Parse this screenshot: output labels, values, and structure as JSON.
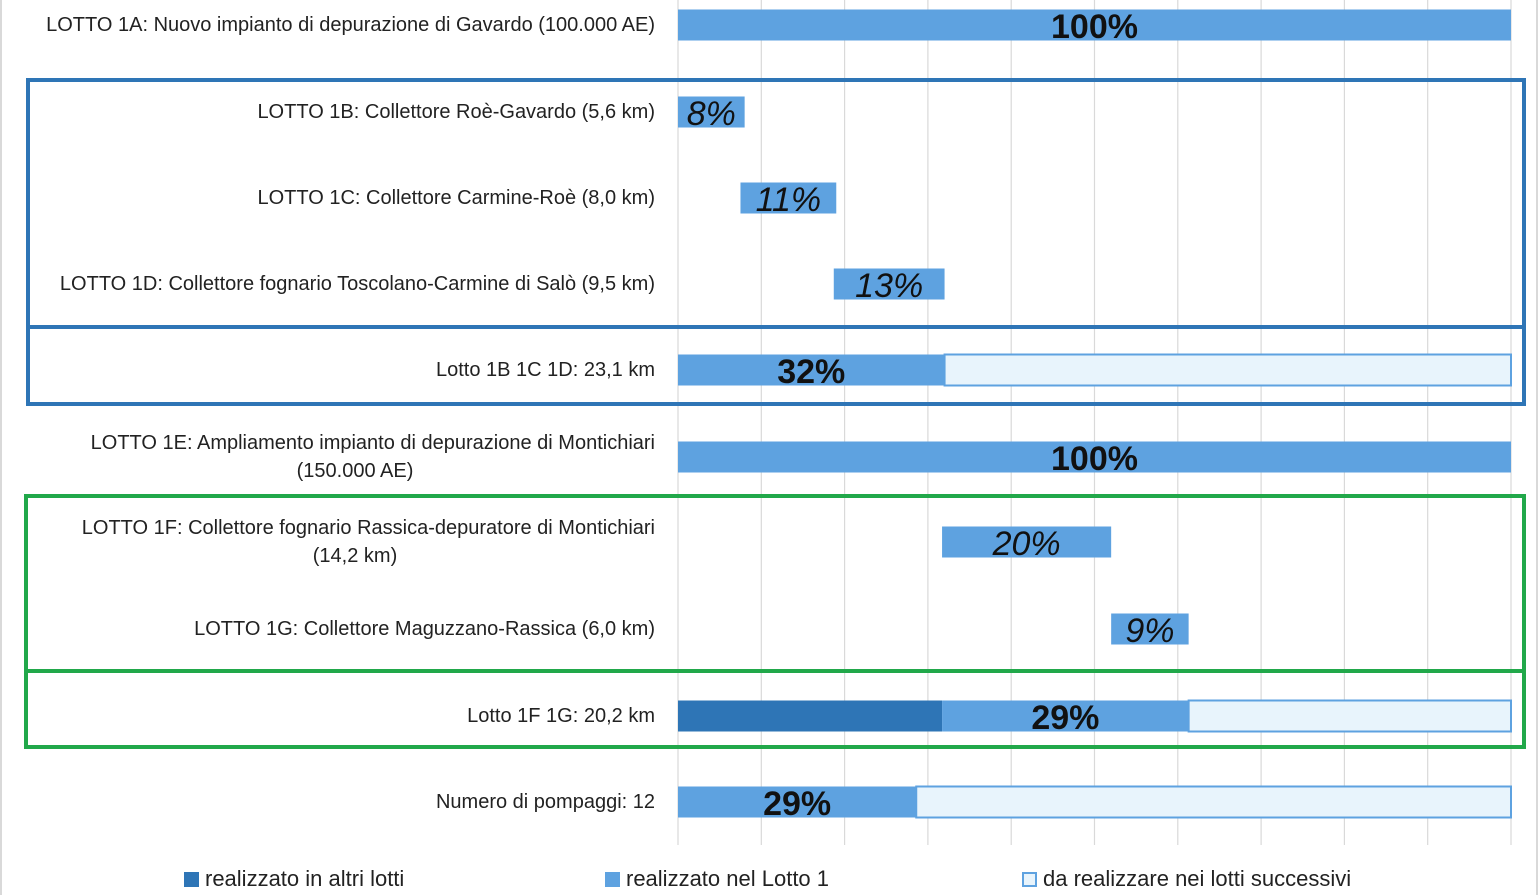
{
  "chart_data": {
    "type": "bar",
    "orientation": "horizontal",
    "stacked": true,
    "xlim": [
      0,
      100
    ],
    "grid": true,
    "legend_position": "bottom",
    "series": [
      {
        "name": "realizzato in altri lotti",
        "color": "#2e75b6"
      },
      {
        "name": "realizzato nel Lotto 1",
        "color": "#5ea2e0"
      },
      {
        "name": "da realizzare nei lotti successivi",
        "color": "#e8f4fc",
        "border": "#5ea2e0"
      }
    ],
    "rows": [
      {
        "label": "LOTTO 1A: Nuovo impianto di depurazione di Gavardo (100.000 AE)",
        "segments": [
          {
            "series": 1,
            "start": 0,
            "end": 100
          }
        ],
        "value_label": "100%",
        "italic": false
      },
      {
        "label": "LOTTO 1B: Collettore Roè-Gavardo (5,6 km)",
        "segments": [
          {
            "series": 1,
            "start": 0,
            "end": 8
          }
        ],
        "value_label": "8%",
        "italic": true
      },
      {
        "label": "LOTTO 1C: Collettore Carmine-Roè (8,0 km)",
        "segments": [
          {
            "series": 1,
            "start": 7.5,
            "end": 19
          }
        ],
        "value_label": "11%",
        "italic": true
      },
      {
        "label": "LOTTO 1D: Collettore fognario Toscolano-Carmine di Salò (9,5 km)",
        "segments": [
          {
            "series": 1,
            "start": 18.7,
            "end": 32
          }
        ],
        "value_label": "13%",
        "italic": true
      },
      {
        "label": "Lotto 1B 1C 1D: 23,1 km",
        "segments": [
          {
            "series": 1,
            "start": 0,
            "end": 32
          },
          {
            "series": 2,
            "start": 32,
            "end": 100
          }
        ],
        "value_label": "32%",
        "italic": false
      },
      {
        "label": "LOTTO 1E: Ampliamento impianto di depurazione di Montichiari (150.000 AE)",
        "label_lines": [
          "LOTTO 1E: Ampliamento impianto di depurazione di Montichiari",
          "(150.000 AE)"
        ],
        "segments": [
          {
            "series": 1,
            "start": 0,
            "end": 100
          }
        ],
        "value_label": "100%",
        "italic": false
      },
      {
        "label": "LOTTO 1F: Collettore fognario Rassica-depuratore di Montichiari (14,2 km)",
        "label_lines": [
          "LOTTO 1F: Collettore fognario Rassica-depuratore di Montichiari",
          "(14,2 km)"
        ],
        "segments": [
          {
            "series": 1,
            "start": 31.7,
            "end": 52
          }
        ],
        "value_label": "20%",
        "italic": true
      },
      {
        "label": "LOTTO 1G: Collettore Maguzzano-Rassica (6,0 km)",
        "segments": [
          {
            "series": 1,
            "start": 52,
            "end": 61.3
          }
        ],
        "value_label": "9%",
        "italic": true
      },
      {
        "label": "Lotto 1F 1G: 20,2 km",
        "segments": [
          {
            "series": 0,
            "start": 0,
            "end": 31.7
          },
          {
            "series": 1,
            "start": 31.7,
            "end": 61.3
          },
          {
            "series": 2,
            "start": 61.3,
            "end": 100
          }
        ],
        "value_label": "29%",
        "italic": false
      },
      {
        "label": "Numero di pompaggi: 12",
        "segments": [
          {
            "series": 1,
            "start": 0,
            "end": 28.6
          },
          {
            "series": 2,
            "start": 28.6,
            "end": 100
          }
        ],
        "value_label": "29%",
        "italic": false
      }
    ],
    "groups": [
      {
        "name": "lotti-1b-1c-1d",
        "rows": [
          1,
          2,
          3
        ],
        "total_row": 4,
        "color": "#2e75b6"
      },
      {
        "name": "lotti-1f-1g",
        "rows": [
          6,
          7
        ],
        "total_row": 8,
        "color": "#21a84a"
      }
    ]
  },
  "legend": [
    {
      "label": "realizzato in altri lotti",
      "color": "#2e75b6",
      "style": "fill"
    },
    {
      "label": "realizzato nel Lotto 1",
      "color": "#5ea2e0",
      "style": "fill"
    },
    {
      "label": "da realizzare nei lotti successivi",
      "color": "#e8f4fc",
      "border": "#5ea2e0",
      "style": "outline"
    }
  ]
}
